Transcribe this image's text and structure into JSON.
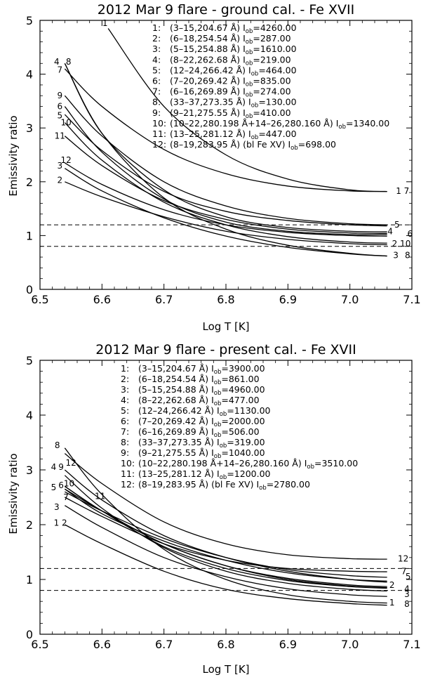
{
  "chart_data": [
    {
      "type": "line",
      "title": "2012 Mar 9 flare - ground cal. - Fe XVII",
      "xlabel": "Log T [K]",
      "ylabel": "Emissivity ratio",
      "xlim": [
        6.5,
        7.1
      ],
      "ylim": [
        0,
        5
      ],
      "xticks": [
        6.5,
        6.6,
        6.7,
        6.8,
        6.9,
        7.0,
        7.1
      ],
      "yticks": [
        0,
        1,
        2,
        3,
        4,
        5
      ],
      "hlines": [
        0.8,
        1.2
      ],
      "legend": [
        {
          "num": "1:",
          "trans": "(3–15,204.67 Å)",
          "iob_label": "I",
          "iob_sub": "ob",
          "iob_value": "=4260.00"
        },
        {
          "num": "2:",
          "trans": "(6–18,254.54 Å)",
          "iob_label": "I",
          "iob_sub": "ob",
          "iob_value": "=287.00"
        },
        {
          "num": "3:",
          "trans": "(5–15,254.88 Å)",
          "iob_label": "I",
          "iob_sub": "ob",
          "iob_value": "=1610.00"
        },
        {
          "num": "4:",
          "trans": "(8–22,262.68 Å)",
          "iob_label": "I",
          "iob_sub": "ob",
          "iob_value": "=219.00"
        },
        {
          "num": "5:",
          "trans": "(12–24,266.42 Å)",
          "iob_label": "I",
          "iob_sub": "ob",
          "iob_value": "=464.00"
        },
        {
          "num": "6:",
          "trans": "(7–20,269.42 Å)",
          "iob_label": "I",
          "iob_sub": "ob",
          "iob_value": "=835.00"
        },
        {
          "num": "7:",
          "trans": "(6–16,269.89 Å)",
          "iob_label": "I",
          "iob_sub": "ob",
          "iob_value": "=274.00"
        },
        {
          "num": "8:",
          "trans": "(33–37,273.35 Å)",
          "iob_label": "I",
          "iob_sub": "ob",
          "iob_value": "=130.00"
        },
        {
          "num": "9:",
          "trans": "(9–21,275.55 Å)",
          "iob_label": "I",
          "iob_sub": "ob",
          "iob_value": "=410.00"
        },
        {
          "num": "10:",
          "trans": "(10–22,280.198 Å+14–26,280.160 Å)",
          "iob_label": "I",
          "iob_sub": "ob",
          "iob_value": "=1340.00"
        },
        {
          "num": "11:",
          "trans": "(13–25,281.12 Å)",
          "iob_label": "I",
          "iob_sub": "ob",
          "iob_value": "=447.00"
        },
        {
          "num": "12:",
          "trans": "(8–19,283.95 Å) (bl Fe XV)",
          "iob_label": "I",
          "iob_sub": "ob",
          "iob_value": "=698.00"
        }
      ],
      "series": [
        {
          "name": "1",
          "x": [
            6.61,
            6.7,
            6.8,
            6.9,
            7.0,
            7.06
          ],
          "y": [
            4.85,
            3.4,
            2.5,
            2.05,
            1.85,
            1.82
          ]
        },
        {
          "name": "2",
          "x": [
            6.54,
            6.6,
            6.7,
            6.8,
            6.9,
            7.0,
            7.06
          ],
          "y": [
            2.0,
            1.72,
            1.35,
            1.08,
            0.93,
            0.85,
            0.83
          ]
        },
        {
          "name": "3",
          "x": [
            6.54,
            6.6,
            6.7,
            6.8,
            6.9,
            7.0,
            7.06
          ],
          "y": [
            2.25,
            1.83,
            1.33,
            0.99,
            0.78,
            0.66,
            0.62
          ]
        },
        {
          "name": "4",
          "x": [
            6.54,
            6.6,
            6.7,
            6.8,
            6.9,
            7.0,
            7.06
          ],
          "y": [
            4.2,
            2.9,
            1.85,
            1.35,
            1.15,
            1.08,
            1.07
          ]
        },
        {
          "name": "5",
          "x": [
            6.54,
            6.6,
            6.7,
            6.8,
            6.9,
            7.0,
            7.06
          ],
          "y": [
            3.25,
            2.58,
            1.82,
            1.45,
            1.28,
            1.2,
            1.18
          ]
        },
        {
          "name": "6",
          "x": [
            6.54,
            6.6,
            6.7,
            6.8,
            6.9,
            7.0,
            7.06
          ],
          "y": [
            3.4,
            2.55,
            1.68,
            1.25,
            1.08,
            1.02,
            1.02
          ]
        },
        {
          "name": "7",
          "x": [
            6.54,
            6.6,
            6.7,
            6.8,
            6.9,
            7.0,
            7.06
          ],
          "y": [
            4.1,
            3.4,
            2.6,
            2.15,
            1.92,
            1.83,
            1.82
          ]
        },
        {
          "name": "8",
          "x": [
            6.54,
            6.6,
            6.7,
            6.8,
            6.9,
            7.0,
            7.06
          ],
          "y": [
            4.2,
            2.9,
            1.7,
            1.12,
            0.82,
            0.67,
            0.62
          ]
        },
        {
          "name": "9",
          "x": [
            6.54,
            6.6,
            6.7,
            6.8,
            6.9,
            7.0,
            7.06
          ],
          "y": [
            3.6,
            2.85,
            2.0,
            1.55,
            1.32,
            1.22,
            1.2
          ]
        },
        {
          "name": "10",
          "x": [
            6.54,
            6.6,
            6.7,
            6.8,
            6.9,
            7.0,
            7.06
          ],
          "y": [
            3.1,
            2.4,
            1.62,
            1.2,
            0.98,
            0.88,
            0.86
          ]
        },
        {
          "name": "11",
          "x": [
            6.54,
            6.6,
            6.7,
            6.8,
            6.9,
            7.0,
            7.06
          ],
          "y": [
            2.85,
            2.3,
            1.65,
            1.3,
            1.12,
            1.05,
            1.04
          ]
        },
        {
          "name": "12",
          "x": [
            6.54,
            6.6,
            6.7,
            6.8,
            6.9,
            7.0,
            7.06
          ],
          "y": [
            2.35,
            1.95,
            1.48,
            1.2,
            1.06,
            1.0,
            0.99
          ]
        }
      ],
      "curve_labels": [
        {
          "text": "1",
          "x": 6.605,
          "y": 4.95
        },
        {
          "text": "4",
          "x": 6.527,
          "y": 4.23
        },
        {
          "text": "8",
          "x": 6.546,
          "y": 4.23
        },
        {
          "text": "7",
          "x": 6.532,
          "y": 4.08
        },
        {
          "text": "9",
          "x": 6.532,
          "y": 3.6
        },
        {
          "text": "6",
          "x": 6.532,
          "y": 3.4
        },
        {
          "text": "5",
          "x": 6.532,
          "y": 3.23
        },
        {
          "text": "10",
          "x": 6.542,
          "y": 3.1
        },
        {
          "text": "11",
          "x": 6.532,
          "y": 2.85
        },
        {
          "text": "12",
          "x": 6.542,
          "y": 2.4
        },
        {
          "text": "3",
          "x": 6.532,
          "y": 2.3
        },
        {
          "text": "2",
          "x": 6.532,
          "y": 2.03
        },
        {
          "text": "1 7",
          "x": 7.085,
          "y": 1.83
        },
        {
          "text": "5",
          "x": 7.076,
          "y": 1.2
        },
        {
          "text": "4",
          "x": 7.065,
          "y": 1.08
        },
        {
          "text": "6",
          "x": 7.097,
          "y": 1.03
        },
        {
          "text": "2 10",
          "x": 7.083,
          "y": 0.85
        },
        {
          "text": "3",
          "x": 7.074,
          "y": 0.63
        },
        {
          "text": "8",
          "x": 7.093,
          "y": 0.63
        }
      ]
    },
    {
      "type": "line",
      "title": "2012 Mar 9 flare - present cal. - Fe XVII",
      "xlabel": "Log T [K]",
      "ylabel": "Emissivity ratio",
      "xlim": [
        6.5,
        7.1
      ],
      "ylim": [
        0,
        5
      ],
      "xticks": [
        6.5,
        6.6,
        6.7,
        6.8,
        6.9,
        7.0,
        7.1
      ],
      "yticks": [
        0,
        1,
        2,
        3,
        4,
        5
      ],
      "hlines": [
        0.8,
        1.2
      ],
      "legend": [
        {
          "num": "1:",
          "trans": "(3–15,204.67 Å)",
          "iob_label": "I",
          "iob_sub": "ob",
          "iob_value": "=3900.00"
        },
        {
          "num": "2:",
          "trans": "(6–18,254.54 Å)",
          "iob_label": "I",
          "iob_sub": "ob",
          "iob_value": "=861.00"
        },
        {
          "num": "3:",
          "trans": "(5–15,254.88 Å)",
          "iob_label": "I",
          "iob_sub": "ob",
          "iob_value": "=4960.00"
        },
        {
          "num": "4:",
          "trans": "(8–22,262.68 Å)",
          "iob_label": "I",
          "iob_sub": "ob",
          "iob_value": "=477.00"
        },
        {
          "num": "5:",
          "trans": "(12–24,266.42 Å)",
          "iob_label": "I",
          "iob_sub": "ob",
          "iob_value": "=1130.00"
        },
        {
          "num": "6:",
          "trans": "(7–20,269.42 Å)",
          "iob_label": "I",
          "iob_sub": "ob",
          "iob_value": "=2000.00"
        },
        {
          "num": "7:",
          "trans": "(6–16,269.89 Å)",
          "iob_label": "I",
          "iob_sub": "ob",
          "iob_value": "=506.00"
        },
        {
          "num": "8:",
          "trans": "(33–37,273.35 Å)",
          "iob_label": "I",
          "iob_sub": "ob",
          "iob_value": "=319.00"
        },
        {
          "num": "9:",
          "trans": "(9–21,275.55 Å)",
          "iob_label": "I",
          "iob_sub": "ob",
          "iob_value": "=1040.00"
        },
        {
          "num": "10:",
          "trans": "(10–22,280.198 Å+14–26,280.160 Å)",
          "iob_label": "I",
          "iob_sub": "ob",
          "iob_value": "=3510.00"
        },
        {
          "num": "11:",
          "trans": "(13–25,281.12 Å)",
          "iob_label": "I",
          "iob_sub": "ob",
          "iob_value": "=1200.00"
        },
        {
          "num": "12:",
          "trans": "(8–19,283.95 Å) (bl Fe XV)",
          "iob_label": "I",
          "iob_sub": "ob",
          "iob_value": "=2780.00"
        }
      ],
      "series": [
        {
          "name": "1",
          "x": [
            6.54,
            6.6,
            6.7,
            6.8,
            6.9,
            7.0,
            7.06
          ],
          "y": [
            2.0,
            1.65,
            1.15,
            0.82,
            0.65,
            0.56,
            0.53
          ]
        },
        {
          "name": "2",
          "x": [
            6.54,
            6.6,
            6.7,
            6.8,
            6.9,
            7.0,
            7.06
          ],
          "y": [
            2.7,
            2.25,
            1.6,
            1.2,
            0.98,
            0.87,
            0.84
          ]
        },
        {
          "name": "3",
          "x": [
            6.54,
            6.6,
            6.7,
            6.8,
            6.9,
            7.0,
            7.06
          ],
          "y": [
            2.35,
            1.95,
            1.4,
            1.05,
            0.83,
            0.72,
            0.69
          ]
        },
        {
          "name": "4",
          "x": [
            6.54,
            6.6,
            6.7,
            6.8,
            6.9,
            7.0,
            7.06
          ],
          "y": [
            2.9,
            2.3,
            1.58,
            1.15,
            0.93,
            0.82,
            0.79
          ]
        },
        {
          "name": "5",
          "x": [
            6.54,
            6.6,
            6.7,
            6.8,
            6.9,
            7.0,
            7.06
          ],
          "y": [
            2.6,
            2.25,
            1.75,
            1.4,
            1.18,
            1.07,
            1.04
          ]
        },
        {
          "name": "6",
          "x": [
            6.54,
            6.6,
            6.7,
            6.8,
            6.9,
            7.0,
            7.06
          ],
          "y": [
            2.65,
            2.25,
            1.65,
            1.25,
            1.02,
            0.9,
            0.87
          ]
        },
        {
          "name": "7",
          "x": [
            6.54,
            6.6,
            6.7,
            6.8,
            6.9,
            7.0,
            7.06
          ],
          "y": [
            2.5,
            2.15,
            1.65,
            1.35,
            1.2,
            1.15,
            1.14
          ]
        },
        {
          "name": "8",
          "x": [
            6.54,
            6.6,
            6.7,
            6.8,
            6.9,
            7.0,
            7.06
          ],
          "y": [
            3.4,
            2.55,
            1.55,
            1.0,
            0.72,
            0.6,
            0.57
          ]
        },
        {
          "name": "9",
          "x": [
            6.54,
            6.6,
            6.7,
            6.8,
            6.9,
            7.0,
            7.06
          ],
          "y": [
            3.0,
            2.45,
            1.8,
            1.4,
            1.15,
            1.0,
            0.95
          ]
        },
        {
          "name": "10",
          "x": [
            6.54,
            6.6,
            6.7,
            6.8,
            6.9,
            7.0,
            7.06
          ],
          "y": [
            2.7,
            2.25,
            1.65,
            1.25,
            1.0,
            0.88,
            0.85
          ]
        },
        {
          "name": "11",
          "x": [
            6.54,
            6.6,
            6.7,
            6.8,
            6.9,
            7.0,
            7.06
          ],
          "y": [
            2.65,
            2.2,
            1.7,
            1.35,
            1.12,
            1.0,
            0.97
          ]
        },
        {
          "name": "12",
          "x": [
            6.54,
            6.6,
            6.7,
            6.8,
            6.9,
            7.0,
            7.06
          ],
          "y": [
            3.3,
            2.75,
            2.05,
            1.65,
            1.45,
            1.38,
            1.37
          ]
        }
      ],
      "curve_labels": [
        {
          "text": "8",
          "x": 6.528,
          "y": 3.45
        },
        {
          "text": "4",
          "x": 6.522,
          "y": 3.05
        },
        {
          "text": "9",
          "x": 6.534,
          "y": 3.05
        },
        {
          "text": "12",
          "x": 6.55,
          "y": 3.13
        },
        {
          "text": "5",
          "x": 6.522,
          "y": 2.68
        },
        {
          "text": "6",
          "x": 6.534,
          "y": 2.72
        },
        {
          "text": "10",
          "x": 6.547,
          "y": 2.75
        },
        {
          "text": "11",
          "x": 6.597,
          "y": 2.52
        },
        {
          "text": "3",
          "x": 6.527,
          "y": 2.32
        },
        {
          "text": "7",
          "x": 6.542,
          "y": 2.5
        },
        {
          "text": "1 2",
          "x": 6.533,
          "y": 2.03
        },
        {
          "text": "12",
          "x": 7.086,
          "y": 1.38
        },
        {
          "text": "7",
          "x": 7.087,
          "y": 1.15
        },
        {
          "text": "5",
          "x": 7.094,
          "y": 1.05
        },
        {
          "text": "2",
          "x": 7.068,
          "y": 0.9
        },
        {
          "text": "4",
          "x": 7.092,
          "y": 0.83
        },
        {
          "text": "3",
          "x": 7.092,
          "y": 0.73
        },
        {
          "text": "1",
          "x": 7.068,
          "y": 0.58
        },
        {
          "text": "8",
          "x": 7.092,
          "y": 0.55
        }
      ]
    }
  ]
}
